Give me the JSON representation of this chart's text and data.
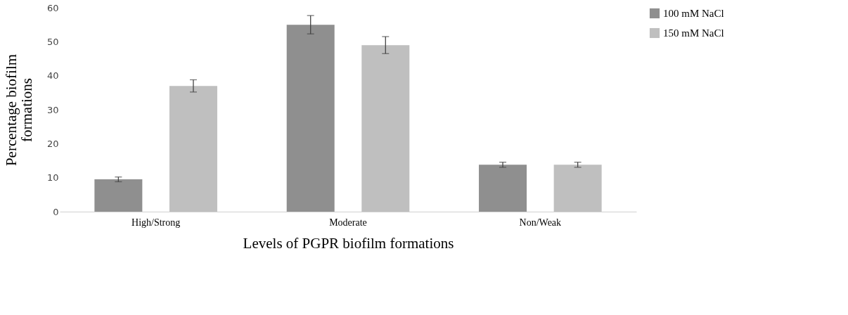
{
  "chart_data": {
    "type": "bar",
    "xlabel": "Levels of PGPR biofilm formations",
    "ylabel": "Percentage biofilm formations",
    "categories": [
      "High/Strong",
      "Moderate",
      "Non/Weak"
    ],
    "series": [
      {
        "name": "100 mM NaCl",
        "color": "#8f8f8f",
        "values": [
          9.5,
          55,
          13.8
        ],
        "errors": [
          0.7,
          2.7,
          0.75
        ]
      },
      {
        "name": "150 mM NaCl",
        "color": "#bfbfbf",
        "values": [
          37,
          49,
          13.8
        ],
        "errors": [
          1.8,
          2.5,
          0.75
        ]
      }
    ],
    "ylim": [
      0,
      60
    ],
    "yticks": [
      0,
      10,
      20,
      30,
      40,
      50,
      60
    ],
    "grid": false,
    "legend": "right"
  }
}
